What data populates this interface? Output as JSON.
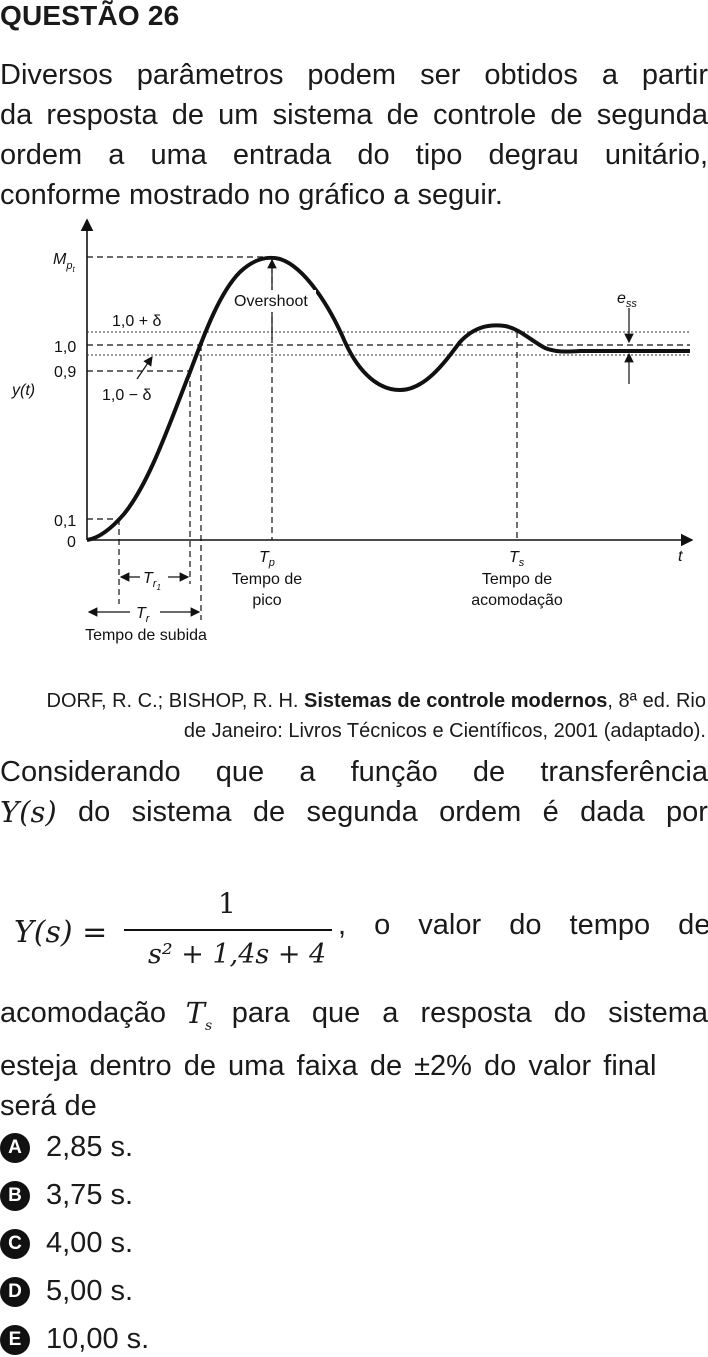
{
  "question": {
    "title": "QUESTÃO 26",
    "intro_lines": [
      "Diversos parâmetros podem ser obtidos a partir",
      "da resposta de um sistema de controle de segunda",
      "ordem a uma entrada do tipo degrau unitário,",
      "conforme mostrado no gráfico a seguir."
    ]
  },
  "figure": {
    "labels": {
      "mp": "M",
      "mp_sub": "p",
      "mp_subsub": "t",
      "overshoot": "Overshoot",
      "ess": "e",
      "ess_sub": "ss",
      "upper_band": "1,0 + δ",
      "lower_band": "1,0 − δ",
      "y_one": "1,0",
      "y_09": "0,9",
      "y_01": "0,1",
      "y_zero": "0",
      "ylabel": "y(t)",
      "xlabel": "t",
      "tr1": "T",
      "tr1_sub": "r",
      "tr1_subsub": "1",
      "tr": "T",
      "tr_sub": "r",
      "rise_time": "Tempo de subida",
      "tp": "T",
      "tp_sub": "p",
      "peak_time_1": "Tempo de",
      "peak_time_2": "pico",
      "ts": "T",
      "ts_sub": "s",
      "settling_1": "Tempo de",
      "settling_2": "acomodação"
    }
  },
  "source": {
    "authors": "DORF, R. C.; BISHOP, R. H. ",
    "book": "Sistemas de controle modernos",
    "rest1": ", 8ª ed. Rio",
    "rest2": "de Janeiro: Livros Técnicos e Científicos, 2001 (adaptado)."
  },
  "body": {
    "line1_words": [
      "Considerando",
      "que",
      "a",
      "função",
      "de",
      "transferência"
    ],
    "line2_math": "Y(s)",
    "line2_words": [
      "do",
      "sistema",
      "de",
      "segunda",
      "ordem",
      "é",
      "dada",
      "por"
    ],
    "formula_lhs": "Y(s) =",
    "formula_num": "1",
    "formula_den": "s² + 1,4s + 4",
    "formula_tail": ", o valor do tempo de",
    "line4_a": "acomodação",
    "line4_math": "T",
    "line4_math_sub": "s",
    "line4_b": "para que a resposta do sistema",
    "line5": "esteja dentro de uma faixa de ±2% do valor final",
    "line6": "será de"
  },
  "options": [
    {
      "letter": "A",
      "text": "2,85 s."
    },
    {
      "letter": "B",
      "text": "3,75 s."
    },
    {
      "letter": "C",
      "text": "4,00 s."
    },
    {
      "letter": "D",
      "text": "5,00 s."
    },
    {
      "letter": "E",
      "text": "10,00 s."
    }
  ]
}
